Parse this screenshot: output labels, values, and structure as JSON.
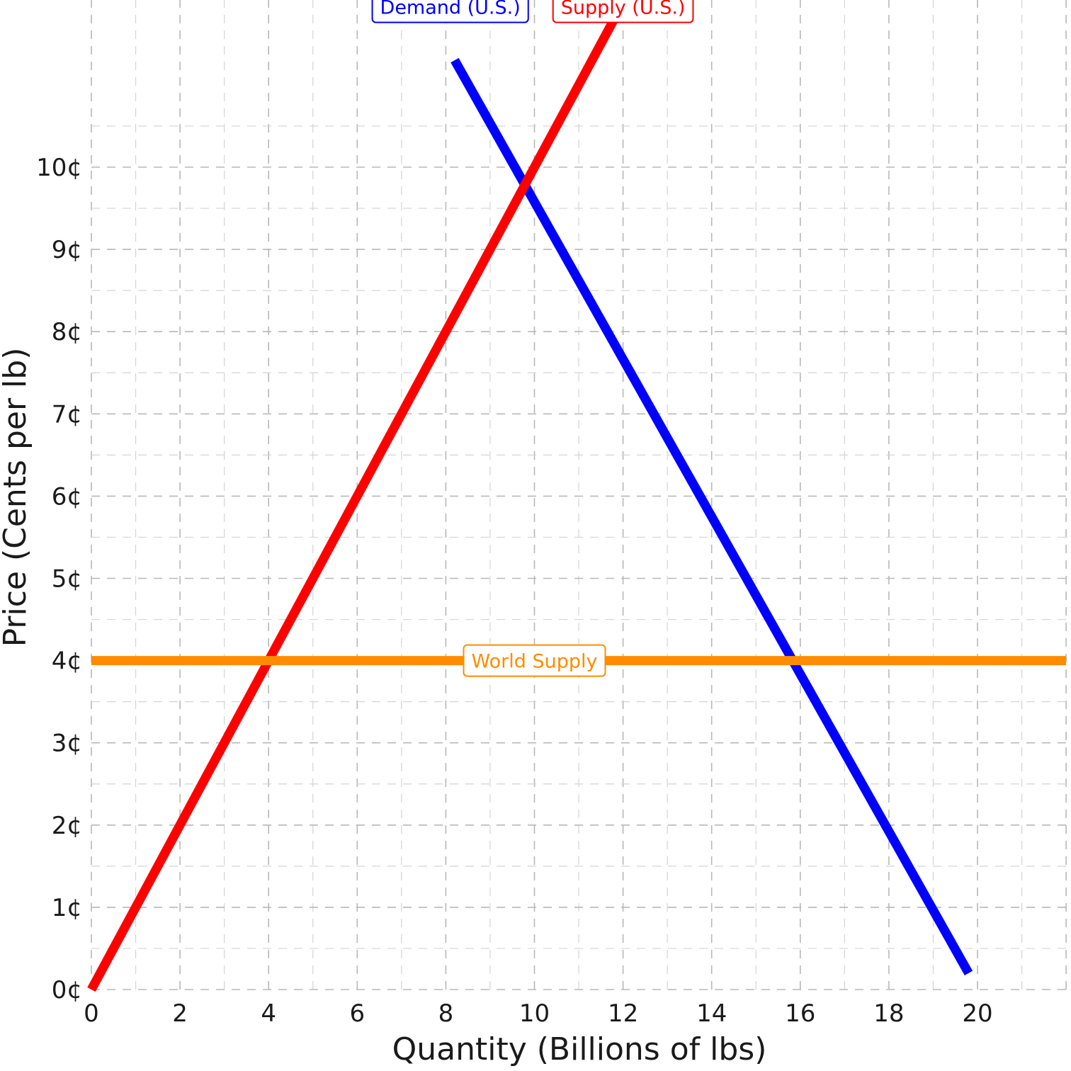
{
  "chart_data": {
    "type": "line",
    "title": "",
    "xlabel": "Quantity (Billions of lbs)",
    "ylabel": "Price (Cents per lb)",
    "xlim": [
      0,
      22
    ],
    "ylim": [
      0,
      10.9
    ],
    "x_ticks": [
      0,
      2,
      4,
      6,
      8,
      10,
      12,
      14,
      16,
      18,
      20
    ],
    "y_ticks": [
      0,
      1,
      2,
      3,
      4,
      5,
      6,
      7,
      8,
      9,
      10
    ],
    "y_tick_labels": [
      "0¢",
      "1¢",
      "2¢",
      "3¢",
      "4¢",
      "5¢",
      "6¢",
      "7¢",
      "8¢",
      "9¢",
      "10¢"
    ],
    "grid": true,
    "series": [
      {
        "name": "Demand (U.S.)",
        "color": "#0000ff",
        "x": [
          8.2,
          19.8
        ],
        "y": [
          11.3,
          0.2
        ],
        "label_at": [
          8.1,
          11.95
        ]
      },
      {
        "name": "Supply (U.S.)",
        "color": "#ff0000",
        "x": [
          0,
          12
        ],
        "y": [
          0,
          12
        ],
        "label_at": [
          12.0,
          11.95
        ]
      },
      {
        "name": "World Supply",
        "color": "#ff8c00",
        "x": [
          0,
          22
        ],
        "y": [
          4,
          4
        ],
        "label_at": [
          10.0,
          4.0
        ]
      }
    ]
  }
}
